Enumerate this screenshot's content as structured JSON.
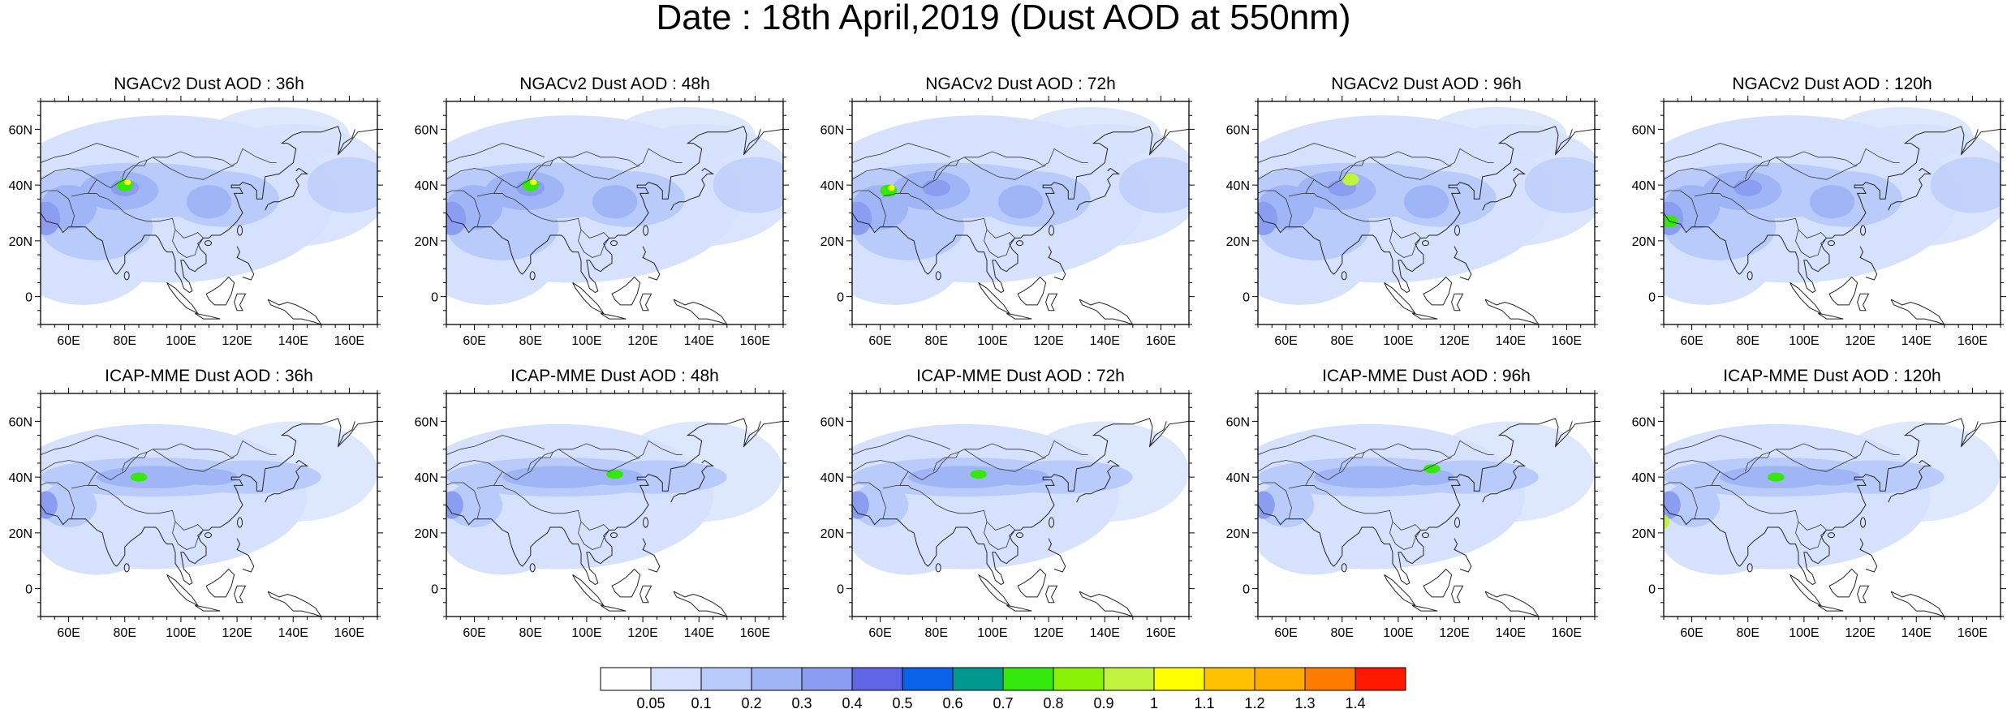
{
  "title": "Date : 18th April,2019 (Dust AOD at 550nm)",
  "panels": [
    {
      "title": "NGACv2 Dust AOD : 36h"
    },
    {
      "title": "NGACv2 Dust AOD : 48h"
    },
    {
      "title": "NGACv2 Dust AOD : 72h"
    },
    {
      "title": "NGACv2 Dust AOD : 96h"
    },
    {
      "title": "NGACv2 Dust AOD : 120h"
    },
    {
      "title": "ICAP-MME Dust AOD : 36h"
    },
    {
      "title": "ICAP-MME Dust AOD : 48h"
    },
    {
      "title": "ICAP-MME Dust AOD : 72h"
    },
    {
      "title": "ICAP-MME Dust AOD : 96h"
    },
    {
      "title": "ICAP-MME Dust AOD : 120h"
    }
  ],
  "lon_ticks": [
    "60E",
    "80E",
    "100E",
    "120E",
    "140E",
    "160E"
  ],
  "lat_ticks": [
    "60N",
    "40N",
    "20N",
    "0"
  ],
  "colorbar": {
    "labels": [
      "0.05",
      "0.1",
      "0.2",
      "0.3",
      "0.4",
      "0.5",
      "0.6",
      "0.7",
      "0.8",
      "0.9",
      "1",
      "1.1",
      "1.2",
      "1.3",
      "1.4"
    ],
    "colors": [
      "#ffffff",
      "#d6e2fd",
      "#b9cbfa",
      "#a0b5f5",
      "#8b9df0",
      "#5f66e6",
      "#0a62e8",
      "#00988f",
      "#33e80a",
      "#8af204",
      "#c1f23d",
      "#ffff00",
      "#ffc200",
      "#ffab00",
      "#ff7c00",
      "#ff1800"
    ]
  },
  "colors": {
    "light": "#d6e2fd",
    "medium": "#b9cbfa",
    "dark": "#a0b5f5",
    "darker": "#8b9df0",
    "deep": "#5f66e6",
    "green": "#33e80a",
    "yellowgreen": "#c1f23d"
  }
}
